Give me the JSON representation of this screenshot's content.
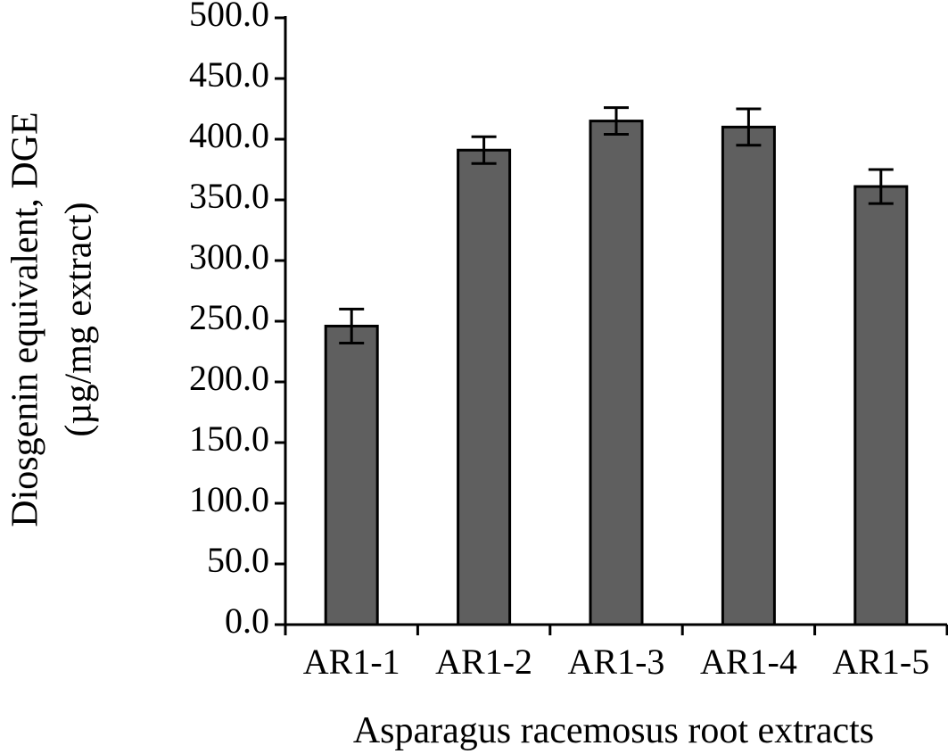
{
  "chart_data": {
    "type": "bar",
    "categories": [
      "AR1-1",
      "AR1-2",
      "AR1-3",
      "AR1-4",
      "AR1-5"
    ],
    "values": [
      246,
      391,
      415,
      410,
      361
    ],
    "errors": [
      14,
      11,
      11,
      15,
      14
    ],
    "xlabel": "Asparagus racemosus root extracts",
    "ylabel_lines": [
      "Diosgenin equivalent, DGE",
      "(µg/mg extract)"
    ],
    "ylim": [
      0,
      500
    ],
    "yticks": [
      "0.0",
      "50.0",
      "100.0",
      "150.0",
      "200.0",
      "250.0",
      "300.0",
      "350.0",
      "400.0",
      "450.0",
      "500.0"
    ],
    "grid": false,
    "colors": {
      "bar_fill": "#5f5f5f",
      "bar_stroke": "#000000",
      "axis": "#000000"
    }
  }
}
